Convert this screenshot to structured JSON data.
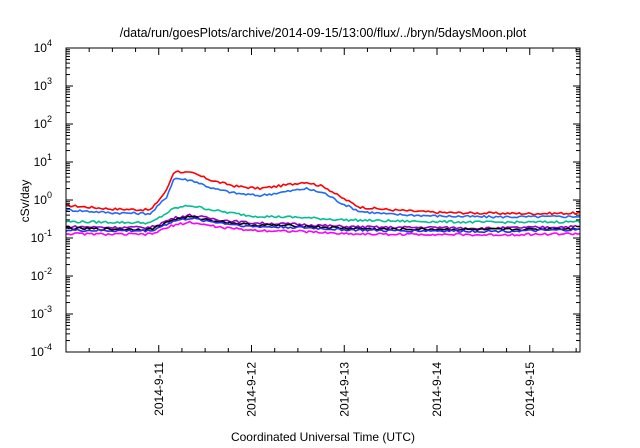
{
  "chart_data": {
    "type": "line",
    "title": "/data/run/goesPlots/archive/2014-09-15/13:00/flux/../bryn/5daysMoon.plot",
    "xlabel": "Coordinated Universal Time (UTC)",
    "ylabel": "cSv/day",
    "yscale": "log",
    "ylim": [
      0.0001,
      10000
    ],
    "xlim": [
      "2014-09-10",
      "2014-09-15T13:00"
    ],
    "grid": false,
    "legend": "none",
    "y_ticks": [
      {
        "base": "10",
        "exp": "-4"
      },
      {
        "base": "10",
        "exp": "-3"
      },
      {
        "base": "10",
        "exp": "-2"
      },
      {
        "base": "10",
        "exp": "-1"
      },
      {
        "base": "10",
        "exp": "0"
      },
      {
        "base": "10",
        "exp": "1"
      },
      {
        "base": "10",
        "exp": "2"
      },
      {
        "base": "10",
        "exp": "3"
      },
      {
        "base": "10",
        "exp": "4"
      }
    ],
    "x_ticks": [
      "2014-9-11",
      "2014-9-12",
      "2014-9-13",
      "2014-9-14",
      "2014-9-15"
    ],
    "series": [
      {
        "color": "#ff0000",
        "x": [
          "2014-09-10",
          "2014-09-10T12:00",
          "2014-09-10T22:00",
          "2014-09-11T02:00",
          "2014-09-11T04:00",
          "2014-09-11T09:00",
          "2014-09-11T14:00",
          "2014-09-11T20:00",
          "2014-09-12T02:00",
          "2014-09-12T08:00",
          "2014-09-12T14:00",
          "2014-09-12T19:00",
          "2014-09-12T23:00",
          "2014-09-13T04:00",
          "2014-09-13T12:00",
          "2014-09-14T00:00",
          "2014-09-14T12:00",
          "2014-09-15T00:00",
          "2014-09-15T13:00"
        ],
        "values": [
          0.72,
          0.58,
          0.55,
          1.8,
          5.8,
          5.0,
          3.2,
          2.3,
          2.0,
          2.4,
          3.0,
          2.2,
          1.2,
          0.65,
          0.55,
          0.47,
          0.45,
          0.44,
          0.45
        ]
      },
      {
        "color": "#1f6bff",
        "x": [
          "2014-09-10",
          "2014-09-10T12:00",
          "2014-09-10T22:00",
          "2014-09-11T02:00",
          "2014-09-11T04:00",
          "2014-09-11T09:00",
          "2014-09-11T14:00",
          "2014-09-11T20:00",
          "2014-09-12T02:00",
          "2014-09-12T08:00",
          "2014-09-12T14:00",
          "2014-09-12T19:00",
          "2014-09-12T23:00",
          "2014-09-13T04:00",
          "2014-09-13T12:00",
          "2014-09-14T00:00",
          "2014-09-14T12:00",
          "2014-09-15T00:00",
          "2014-09-15T13:00"
        ],
        "values": [
          0.55,
          0.46,
          0.44,
          1.2,
          3.8,
          3.2,
          2.0,
          1.5,
          1.3,
          1.6,
          2.0,
          1.5,
          0.85,
          0.5,
          0.42,
          0.38,
          0.36,
          0.36,
          0.37
        ]
      },
      {
        "color": "#00c090",
        "x": [
          "2014-09-10",
          "2014-09-10T12:00",
          "2014-09-10T22:00",
          "2014-09-11T04:00",
          "2014-09-11T08:00",
          "2014-09-11T16:00",
          "2014-09-12T00:00",
          "2014-09-12T12:00",
          "2014-09-13T00:00",
          "2014-09-13T12:00",
          "2014-09-14T00:00",
          "2014-09-14T12:00",
          "2014-09-15T00:00",
          "2014-09-15T13:00"
        ],
        "values": [
          0.27,
          0.26,
          0.25,
          0.6,
          0.72,
          0.5,
          0.38,
          0.35,
          0.3,
          0.28,
          0.27,
          0.26,
          0.26,
          0.27
        ]
      },
      {
        "color": "#9a00c8",
        "x": [
          "2014-09-10",
          "2014-09-10T12:00",
          "2014-09-10T22:00",
          "2014-09-11T04:00",
          "2014-09-11T08:00",
          "2014-09-11T16:00",
          "2014-09-12T00:00",
          "2014-09-12T12:00",
          "2014-09-13T00:00",
          "2014-09-13T12:00",
          "2014-09-14T00:00",
          "2014-09-14T12:00",
          "2014-09-15T00:00",
          "2014-09-15T13:00"
        ],
        "values": [
          0.2,
          0.19,
          0.19,
          0.34,
          0.4,
          0.3,
          0.25,
          0.23,
          0.2,
          0.19,
          0.19,
          0.18,
          0.19,
          0.2
        ]
      },
      {
        "color": "#000000",
        "x": [
          "2014-09-10",
          "2014-09-10T12:00",
          "2014-09-10T22:00",
          "2014-09-11T04:00",
          "2014-09-11T08:00",
          "2014-09-11T16:00",
          "2014-09-12T00:00",
          "2014-09-12T12:00",
          "2014-09-13T00:00",
          "2014-09-13T12:00",
          "2014-09-14T00:00",
          "2014-09-14T12:00",
          "2014-09-15T00:00",
          "2014-09-15T13:00"
        ],
        "values": [
          0.18,
          0.17,
          0.17,
          0.31,
          0.36,
          0.27,
          0.22,
          0.21,
          0.18,
          0.17,
          0.17,
          0.165,
          0.17,
          0.18
        ]
      },
      {
        "color": "#2233dd",
        "x": [
          "2014-09-10",
          "2014-09-10T12:00",
          "2014-09-10T22:00",
          "2014-09-11T04:00",
          "2014-09-11T08:00",
          "2014-09-11T16:00",
          "2014-09-12T00:00",
          "2014-09-12T12:00",
          "2014-09-13T00:00",
          "2014-09-13T12:00",
          "2014-09-14T00:00",
          "2014-09-14T12:00",
          "2014-09-15T00:00",
          "2014-09-15T13:00"
        ],
        "values": [
          0.16,
          0.155,
          0.155,
          0.28,
          0.33,
          0.25,
          0.2,
          0.19,
          0.165,
          0.155,
          0.155,
          0.15,
          0.155,
          0.165
        ]
      },
      {
        "color": "#ff00ff",
        "x": [
          "2014-09-10",
          "2014-09-10T12:00",
          "2014-09-10T22:00",
          "2014-09-11T04:00",
          "2014-09-11T08:00",
          "2014-09-11T16:00",
          "2014-09-12T00:00",
          "2014-09-12T12:00",
          "2014-09-13T00:00",
          "2014-09-13T12:00",
          "2014-09-14T00:00",
          "2014-09-14T12:00",
          "2014-09-15T00:00",
          "2014-09-15T13:00"
        ],
        "values": [
          0.13,
          0.125,
          0.125,
          0.22,
          0.26,
          0.19,
          0.16,
          0.15,
          0.13,
          0.125,
          0.125,
          0.12,
          0.125,
          0.13
        ]
      }
    ]
  }
}
